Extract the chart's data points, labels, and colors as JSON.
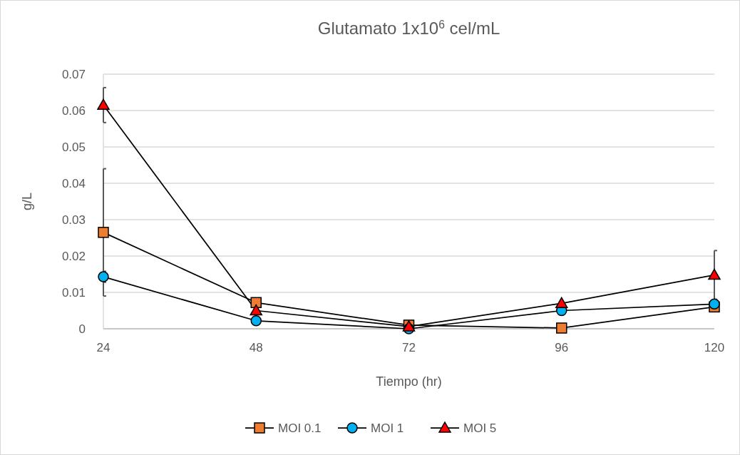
{
  "chart_data": {
    "type": "line",
    "title": "Glutamato 1x10$^{6}$ cel/mL",
    "xlabel": "Tiempo (hr)",
    "ylabel": "g/L",
    "x": [
      24,
      48,
      72,
      96,
      120
    ],
    "xlim": [
      24,
      120
    ],
    "xticks": [
      24,
      48,
      72,
      96,
      120
    ],
    "ylim": [
      0,
      0.07
    ],
    "yticks": [
      0,
      0.01,
      0.02,
      0.03,
      0.04,
      0.05,
      0.06,
      0.07
    ],
    "grid": "y",
    "legend": "bottom",
    "series": [
      {
        "name": "MOI 0.1",
        "color": "#ed7d31",
        "marker": "square",
        "values": [
          0.0265,
          0.0072,
          0.001,
          0.0002,
          0.006
        ],
        "errors": [
          0.0175,
          null,
          null,
          null,
          null
        ]
      },
      {
        "name": "MOI 1",
        "color": "#00b0f0",
        "marker": "circle",
        "values": [
          0.0143,
          0.0022,
          0,
          0.005,
          0.0068
        ],
        "errors": [
          0.0015,
          null,
          null,
          null,
          null
        ]
      },
      {
        "name": "MOI 5",
        "color": "#ff0000",
        "marker": "triangle",
        "values": [
          0.0615,
          0.005,
          0.0006,
          0.007,
          0.0148
        ],
        "errors": [
          0.0048,
          null,
          null,
          null,
          0.0067
        ]
      }
    ]
  }
}
